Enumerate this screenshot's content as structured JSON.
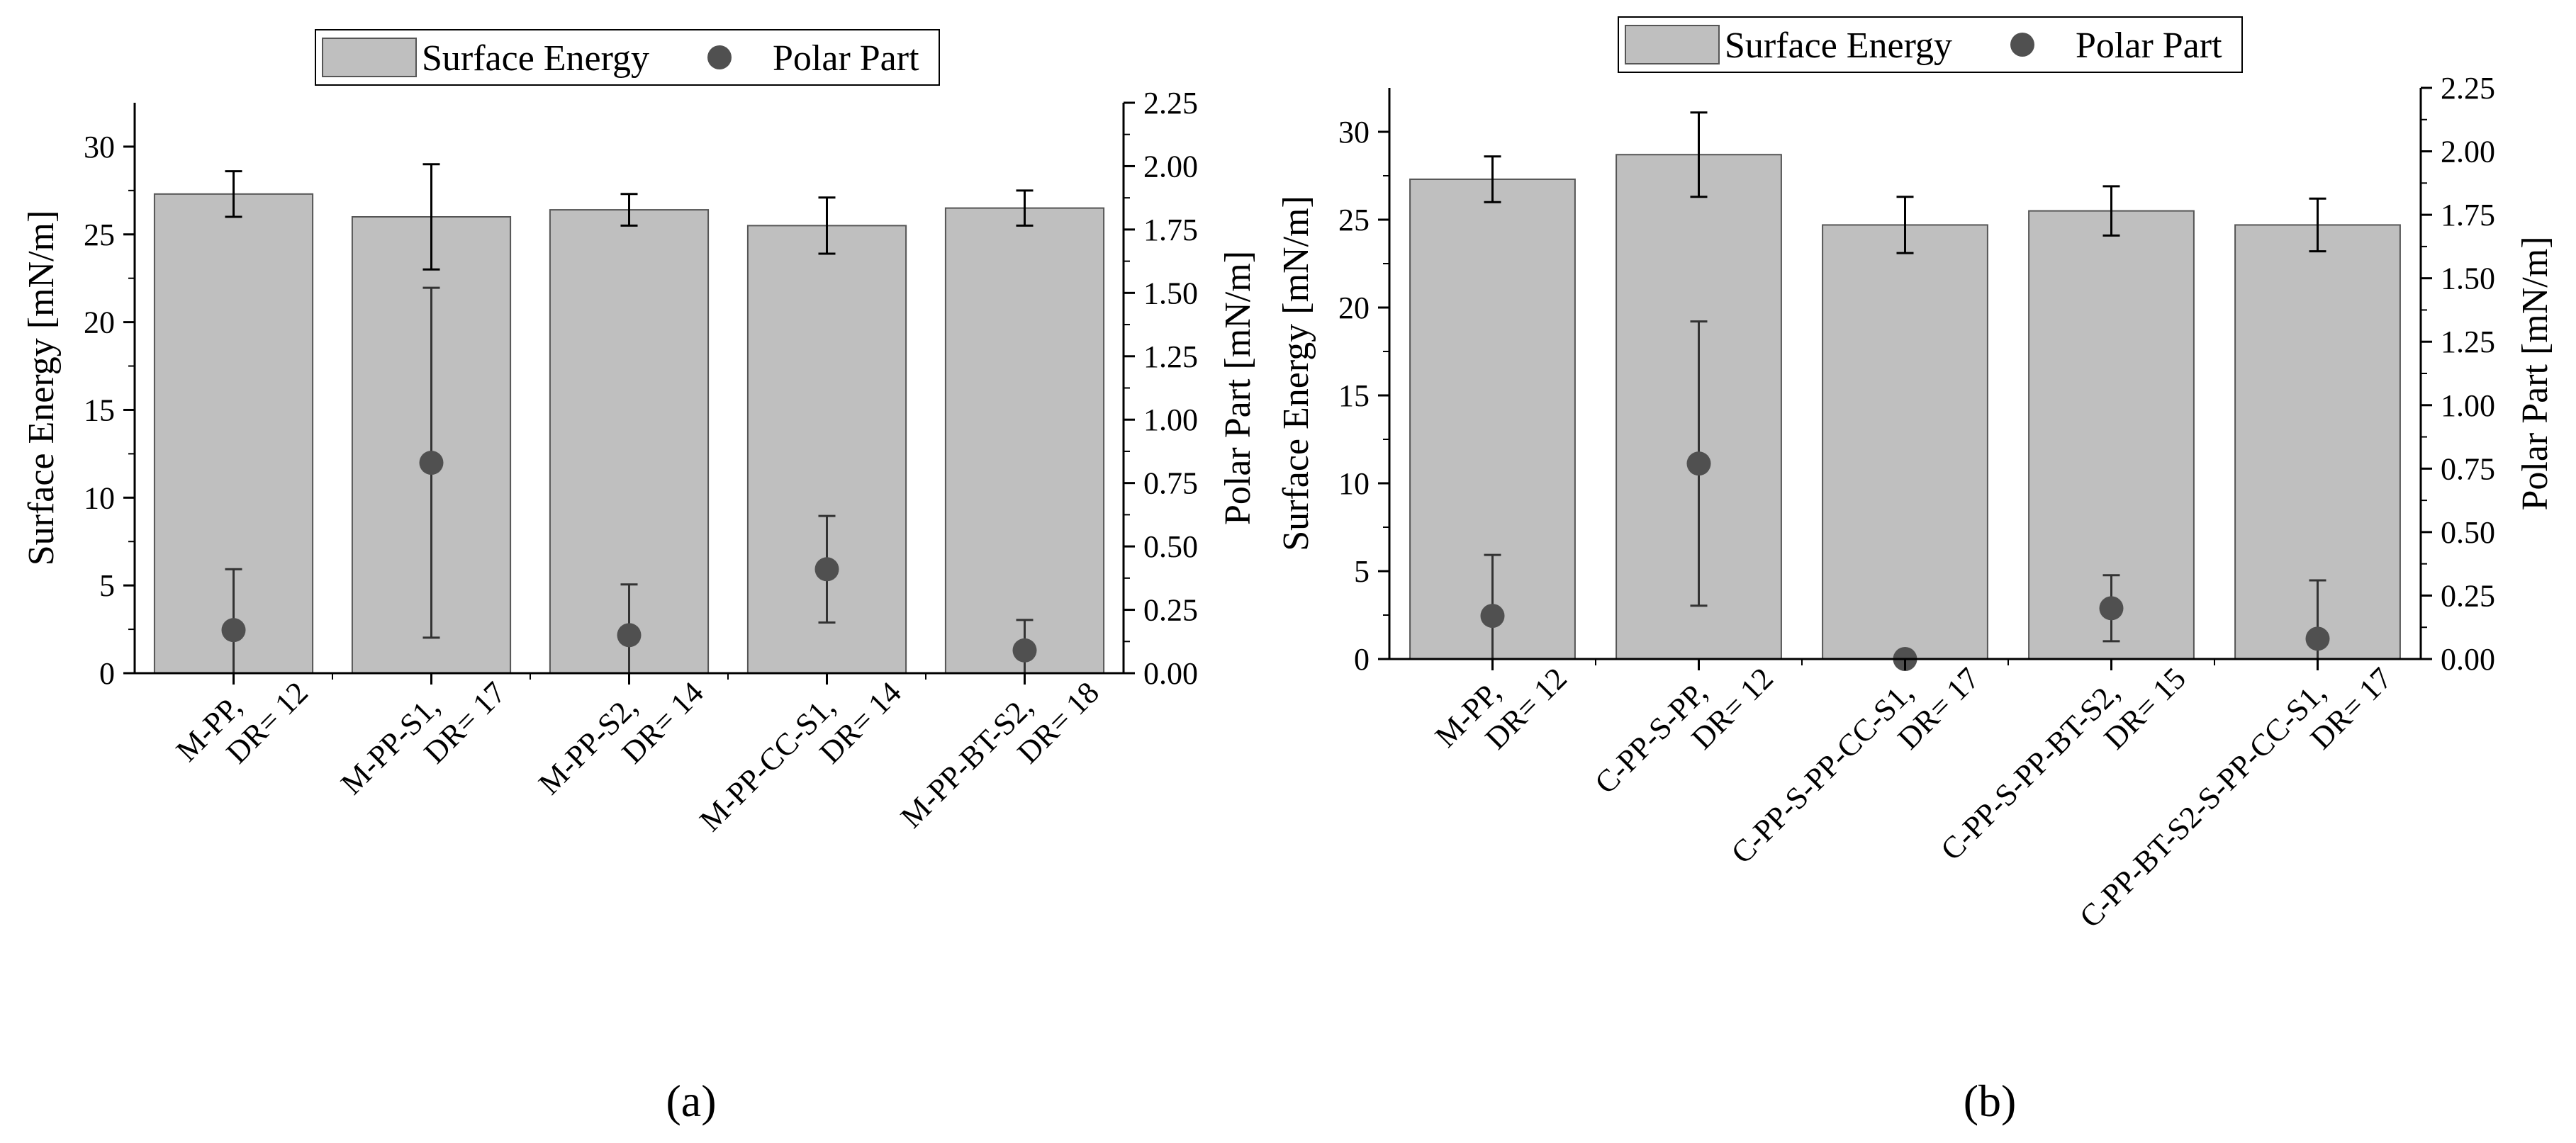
{
  "chart_data": [
    {
      "type": "bar",
      "panel_label": "(a)",
      "categories": [
        [
          "M-PP,",
          "DR= 12"
        ],
        [
          "M-PP-S1,",
          "DR= 17"
        ],
        [
          "M-PP-S2,",
          "DR= 14"
        ],
        [
          "M-PP-CC-S1,",
          "DR= 14"
        ],
        [
          "M-PP-BT-S2,",
          "DR= 18"
        ]
      ],
      "series": [
        {
          "name": "Surface Energy",
          "kind": "bar",
          "axis": "left",
          "color": "#bfbfbf",
          "values": [
            27.3,
            26.0,
            26.4,
            25.5,
            26.5
          ],
          "errors": [
            1.3,
            3.0,
            0.9,
            1.6,
            1.0
          ]
        },
        {
          "name": "Polar Part",
          "kind": "point",
          "axis": "right",
          "color": "#505050",
          "values": [
            0.17,
            0.83,
            0.15,
            0.41,
            0.09
          ],
          "errors": [
            0.24,
            0.69,
            0.2,
            0.21,
            0.12
          ]
        }
      ],
      "ylabel": "Surface Energy [mN/m]",
      "ylim": [
        0,
        32.5
      ],
      "yticks": [
        "0",
        "5",
        "10",
        "15",
        "20",
        "25",
        "30"
      ],
      "ylabel_right": "Polar Part [mN/m]",
      "ylim_right": [
        0,
        2.25
      ],
      "yticks_right": [
        "0.00",
        "0.25",
        "0.50",
        "0.75",
        "1.00",
        "1.25",
        "1.50",
        "1.75",
        "2.00",
        "2.25"
      ],
      "legend_position": "top-center",
      "grid": false
    },
    {
      "type": "bar",
      "panel_label": "(b)",
      "categories": [
        [
          "M-PP,",
          "DR= 12"
        ],
        [
          "C-PP-S-PP,",
          "DR= 12"
        ],
        [
          "C-PP-S-PP-CC-S1,",
          "DR= 17"
        ],
        [
          "C-PP-S-PP-BT-S2,",
          "DR= 15"
        ],
        [
          "C-PP-BT-S2-S-PP-CC-S1,",
          "DR= 17"
        ]
      ],
      "series": [
        {
          "name": "Surface Energy",
          "kind": "bar",
          "axis": "left",
          "color": "#bfbfbf",
          "values": [
            27.3,
            28.7,
            24.7,
            25.5,
            24.7
          ],
          "errors": [
            1.3,
            2.4,
            1.6,
            1.4,
            1.5
          ]
        },
        {
          "name": "Polar Part",
          "kind": "point",
          "axis": "right",
          "color": "#505050",
          "values": [
            0.17,
            0.77,
            0.0,
            0.2,
            0.08
          ],
          "errors": [
            0.24,
            0.56,
            0.0,
            0.13,
            0.23
          ]
        }
      ],
      "ylabel": "Surface Energy [mN/m]",
      "ylim": [
        0,
        32.5
      ],
      "yticks": [
        "0",
        "5",
        "10",
        "15",
        "20",
        "25",
        "30"
      ],
      "ylabel_right": "Polar Part [mN/m]",
      "ylim_right": [
        0,
        2.25
      ],
      "yticks_right": [
        "0.00",
        "0.25",
        "0.50",
        "0.75",
        "1.00",
        "1.25",
        "1.50",
        "1.75",
        "2.00",
        "2.25"
      ],
      "legend_position": "top-center",
      "grid": false
    }
  ]
}
